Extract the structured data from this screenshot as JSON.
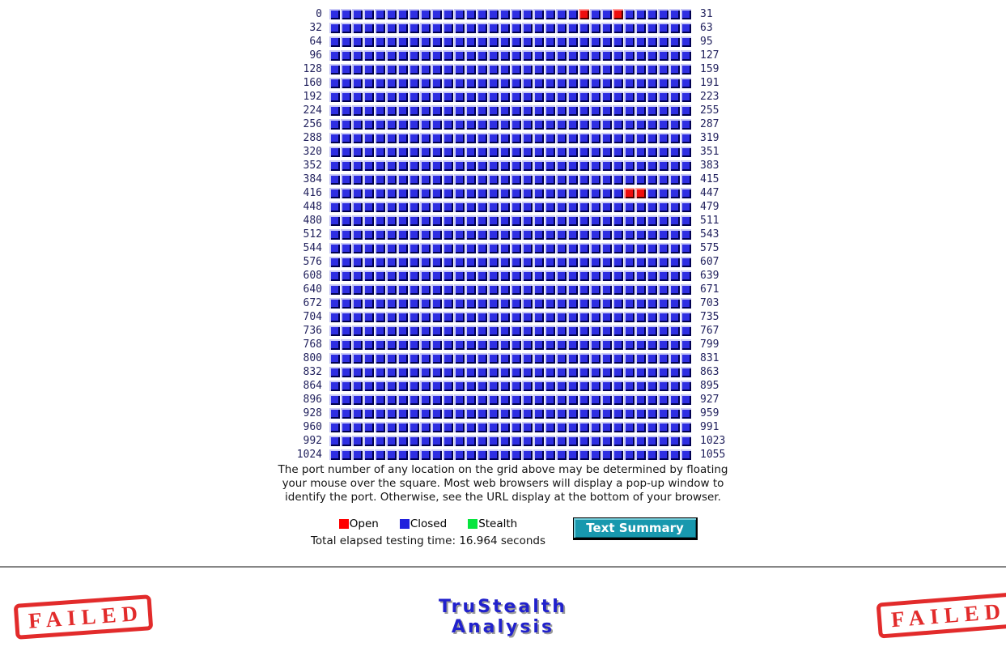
{
  "port_grid": {
    "columns": 32,
    "left_labels": [
      "0",
      "32",
      "64",
      "96",
      "128",
      "160",
      "192",
      "224",
      "256",
      "288",
      "320",
      "352",
      "384",
      "416",
      "448",
      "480",
      "512",
      "544",
      "576",
      "608",
      "640",
      "672",
      "704",
      "736",
      "768",
      "800",
      "832",
      "864",
      "896",
      "928",
      "960",
      "992",
      "1024"
    ],
    "right_labels": [
      "31",
      "63",
      "95",
      "127",
      "159",
      "191",
      "223",
      "255",
      "287",
      "319",
      "351",
      "383",
      "415",
      "447",
      "479",
      "511",
      "543",
      "575",
      "607",
      "639",
      "671",
      "703",
      "735",
      "767",
      "799",
      "831",
      "863",
      "895",
      "927",
      "959",
      "991",
      "1023",
      "1055"
    ],
    "open_ports": [
      22,
      25,
      442,
      443
    ],
    "stealth_ports": [],
    "colors": {
      "open": "#ee0e0e",
      "open_highlight": "#ff9f9f",
      "open_shadow": "#4d0000",
      "closed": "#2e2ee2",
      "closed_highlight": "#c9c9f7",
      "closed_shadow": "#000050"
    }
  },
  "note_lines": [
    "The port number of any location on the grid above may be determined by floating",
    "your mouse over the square. Most web browsers will display a pop-up window to",
    "identify the port. Otherwise, see the URL display at the bottom of your browser."
  ],
  "legend": {
    "items": [
      {
        "name": "open",
        "label": "Open",
        "color": "#fe0000"
      },
      {
        "name": "closed",
        "label": "Closed",
        "color": "#2121dd"
      },
      {
        "name": "stealth",
        "label": "Stealth",
        "color": "#06e53e"
      }
    ]
  },
  "elapsed_text": "Total elapsed testing time: 16.964 seconds",
  "summary_button_label": "Text Summary",
  "verdict": {
    "line1": "TruStealth",
    "line2": "Analysis",
    "stamp_text": "FAILED",
    "stamp_color": "#e01b1b",
    "title_color": "#2121cc"
  }
}
